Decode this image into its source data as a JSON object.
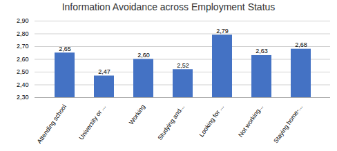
{
  "chart_data": {
    "type": "bar",
    "title": "Information Avoidance across Employment Status",
    "categories": [
      "Attending school",
      "University or ...",
      "Working",
      "Studying and...",
      "Looking for ...",
      "Not working...",
      "Staying home-..."
    ],
    "values": [
      2.65,
      2.47,
      2.6,
      2.52,
      2.79,
      2.63,
      2.68
    ],
    "value_labels": [
      "2,65",
      "2,47",
      "2,60",
      "2,52",
      "2,79",
      "2,63",
      "2,68"
    ],
    "color": "#4472C4",
    "ylim": [
      2.3,
      2.9
    ],
    "yticks": [
      {
        "value": 2.3,
        "label": "2,30"
      },
      {
        "value": 2.4,
        "label": "2,40"
      },
      {
        "value": 2.5,
        "label": "2,50"
      },
      {
        "value": 2.6,
        "label": "2,60"
      },
      {
        "value": 2.7,
        "label": "2,70"
      },
      {
        "value": 2.8,
        "label": "2,80"
      },
      {
        "value": 2.9,
        "label": "2,90"
      }
    ],
    "grid": true,
    "data_labels": true
  }
}
